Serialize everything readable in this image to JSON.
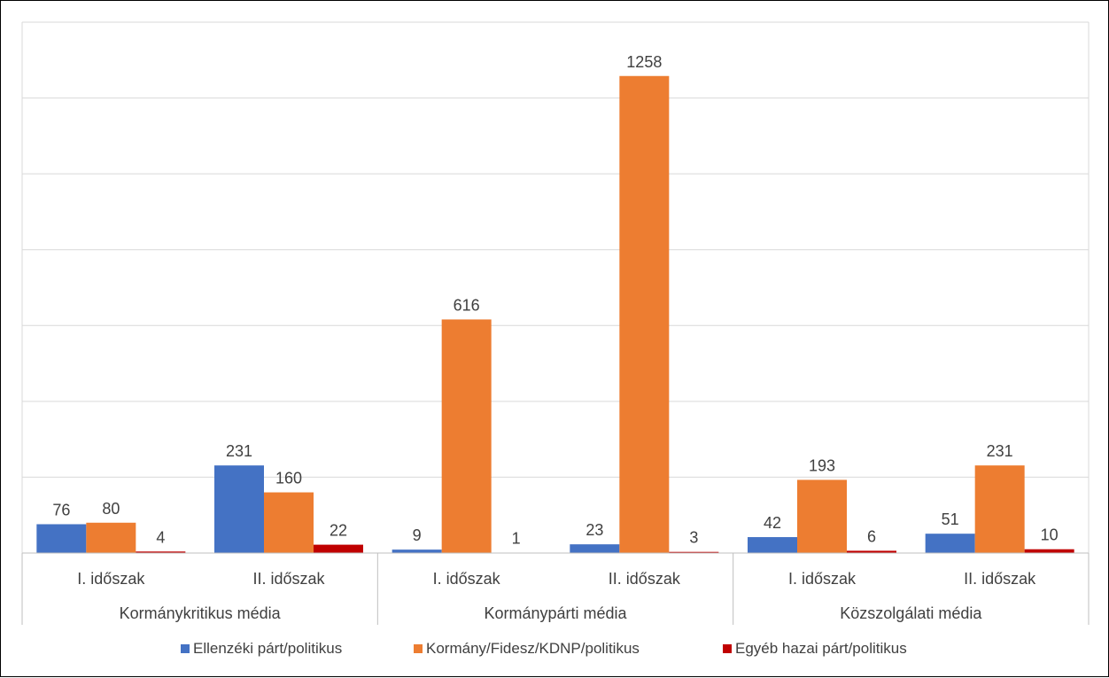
{
  "chart_data": {
    "type": "bar",
    "title": "",
    "xlabel": "",
    "ylabel": "",
    "ylim": [
      0,
      1400
    ],
    "grid": true,
    "legend_position": "bottom",
    "groups": [
      {
        "name": "Kormánykritikus média",
        "periods": [
          "I. időszak",
          "II. időszak"
        ]
      },
      {
        "name": "Kormánypárti média",
        "periods": [
          "I. időszak",
          "II. időszak"
        ]
      },
      {
        "name": "Közszolgálati média",
        "periods": [
          "I. időszak",
          "II. időszak"
        ]
      }
    ],
    "categories": [
      "Kormánykritikus média / I. időszak",
      "Kormánykritikus média / II. időszak",
      "Kormánypárti média / I. időszak",
      "Kormánypárti média / II. időszak",
      "Közszolgálati média / I. időszak",
      "Közszolgálati média / II. időszak"
    ],
    "series": [
      {
        "name": "Ellenzéki párt/politikus",
        "color": "#4472C4",
        "values": [
          76,
          231,
          9,
          23,
          42,
          51
        ]
      },
      {
        "name": "Kormány/Fidesz/KDNP/politikus",
        "color": "#ED7D31",
        "values": [
          80,
          160,
          616,
          1258,
          193,
          231
        ]
      },
      {
        "name": "Egyéb hazai párt/politikus",
        "color": "#C00000",
        "values": [
          4,
          22,
          1,
          3,
          6,
          10
        ]
      }
    ]
  }
}
